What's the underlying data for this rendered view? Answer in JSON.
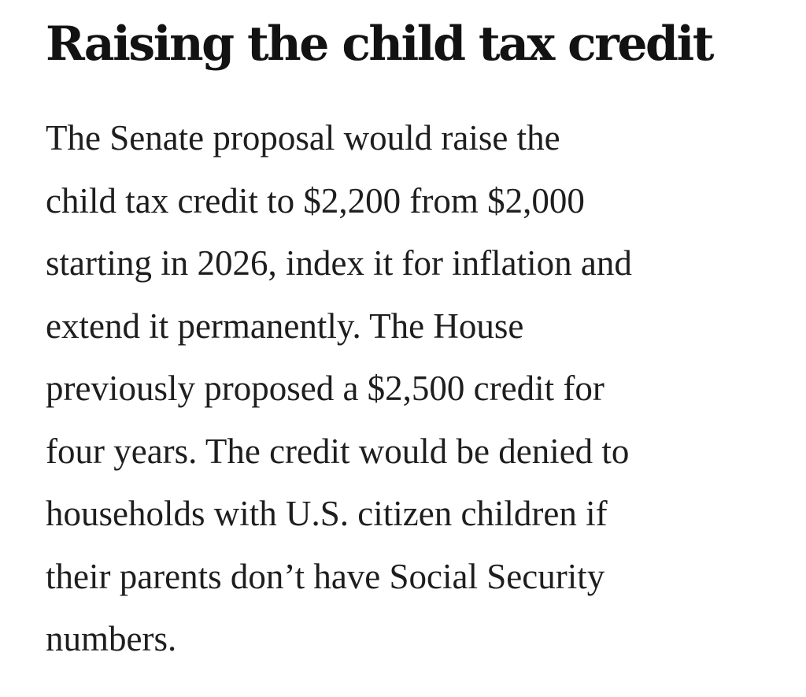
{
  "article": {
    "headline": "Raising the child tax credit",
    "paragraph_lines": [
      "The Senate proposal would raise the",
      "child tax credit to $2,200 from $2,000",
      "starting in 2026, index it for inflation and",
      "extend it permanently. The House",
      "previously proposed a $2,500 credit for",
      "four years. The credit would be denied to",
      "households with U.S. citizen children if",
      "their parents don’t have Social Security",
      "numbers."
    ]
  }
}
